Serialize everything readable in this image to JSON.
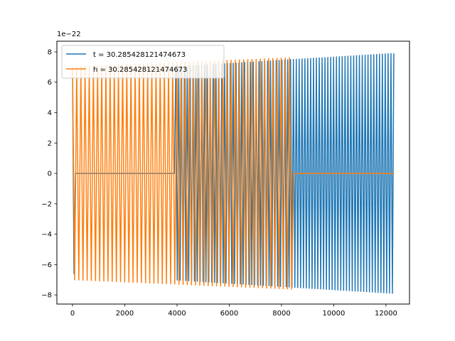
{
  "chart_data": {
    "type": "line",
    "title": "",
    "xlabel": "",
    "ylabel": "",
    "y_offset_label": "1e−22",
    "xlim": [
      -600,
      12900
    ],
    "ylim": [
      -8.6,
      8.7
    ],
    "xticks": [
      0,
      2000,
      4000,
      6000,
      8000,
      10000,
      12000
    ],
    "yticks": [
      -8,
      -6,
      -4,
      -2,
      0,
      2,
      4,
      6,
      8
    ],
    "ytick_labels": [
      "−8",
      "−6",
      "−4",
      "−2",
      "0",
      "2",
      "4",
      "6",
      "8"
    ],
    "grid": false,
    "legend_location": "upper-left",
    "series": [
      {
        "name": "t = 30.285428121474673",
        "color": "#1f77b4",
        "x_range": [
          0,
          12300
        ],
        "cycles": 112,
        "amplitude_start": 6.6,
        "amplitude_end": 7.9,
        "zero_segments": [
          [
            90,
            3900
          ]
        ]
      },
      {
        "name": "h = 30.285428121474673",
        "color": "#ff7f0e",
        "x_range": [
          0,
          12300
        ],
        "cycles": 77,
        "amplitude_start": 7.0,
        "amplitude_end": 7.9,
        "zero_segments": [
          [
            8450,
            12300
          ]
        ]
      }
    ]
  }
}
